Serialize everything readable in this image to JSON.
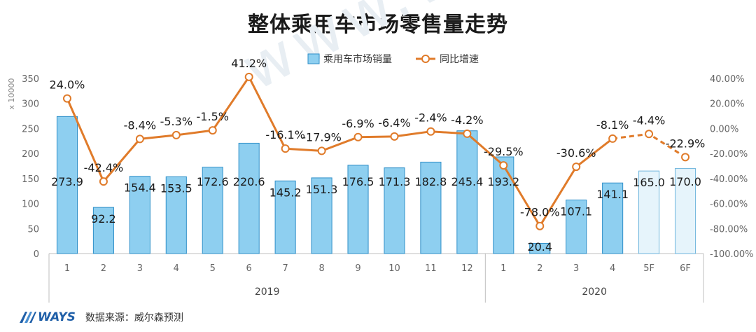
{
  "title": "整体乘用车市场零售量走势",
  "watermark": "www.ways-s.cn",
  "footer": {
    "logo": "WAYS",
    "source": "数据来源：威尔森预测"
  },
  "chart_data": {
    "type": "bar+line",
    "y_unit_label": "x 10000",
    "legend": {
      "position": "top-center",
      "bar_label": "乘用车市场销量",
      "line_label": "同比增速"
    },
    "categories": [
      "1",
      "2",
      "3",
      "4",
      "5",
      "6",
      "7",
      "8",
      "9",
      "10",
      "11",
      "12",
      "1",
      "2",
      "3",
      "4",
      "5F",
      "6F"
    ],
    "year_groups": [
      {
        "label": "2019",
        "start": 0,
        "end": 11
      },
      {
        "label": "2020",
        "start": 12,
        "end": 17
      }
    ],
    "bar_values": [
      273.9,
      92.2,
      154.4,
      153.5,
      172.6,
      220.6,
      145.2,
      151.3,
      176.5,
      171.3,
      182.8,
      245.4,
      193.2,
      20.4,
      107.1,
      141.1,
      165.0,
      170.0
    ],
    "bar_labels": [
      "273.9",
      "92.2",
      "154.4",
      "153.5",
      "172.6",
      "220.6",
      "145.2",
      "151.3",
      "176.5",
      "171.3",
      "182.8",
      "245.4",
      "193.2",
      "20.4",
      "107.1",
      "141.1",
      "165.0",
      "170.0"
    ],
    "forecast_from_index": 16,
    "growth_values": [
      24.0,
      -42.4,
      -8.4,
      -5.3,
      -1.5,
      41.2,
      -16.1,
      -17.9,
      -6.9,
      -6.4,
      -2.4,
      -4.2,
      -29.5,
      -78.0,
      -30.6,
      -8.1,
      -4.4,
      -22.9
    ],
    "growth_labels": [
      "24.0%",
      "-42.4%",
      "-8.4%",
      "-5.3%",
      "-1.5%",
      "41.2%",
      "-16.1%",
      "-17.9%",
      "-6.9%",
      "-6.4%",
      "-2.4%",
      "-4.2%",
      "-29.5%",
      "-78.0%",
      "-30.6%",
      "-8.1%",
      "-4.4%",
      "-22.9%"
    ],
    "left_axis": {
      "min": 0,
      "max": 350,
      "step": 50,
      "ticks": [
        "0",
        "50",
        "100",
        "150",
        "200",
        "250",
        "300",
        "350"
      ]
    },
    "right_axis": {
      "min": -100,
      "max": 40,
      "step": 20,
      "ticks": [
        "-100.00%",
        "-80.00%",
        "-60.00%",
        "-40.00%",
        "-20.00%",
        "0.00%",
        "20.00%",
        "40.00%"
      ]
    },
    "colors": {
      "bar_fill": "#8ecff0",
      "bar_stroke": "#2f8fc8",
      "forecast_fill": "#e6f4fb",
      "forecast_stroke": "#6fb5dd",
      "line": "#e07b2a",
      "marker_fill": "#ffffff",
      "axis_text": "#666666"
    }
  }
}
